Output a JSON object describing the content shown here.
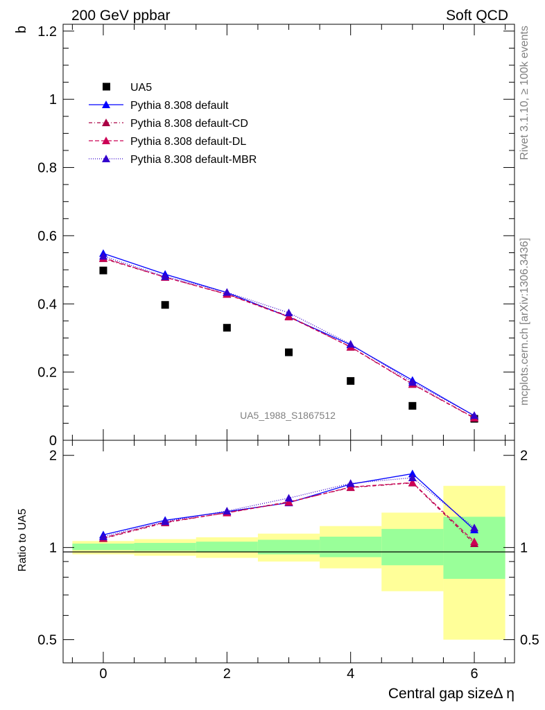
{
  "header": {
    "left": "200 GeV ppbar",
    "right": "Soft QCD"
  },
  "side_labels": {
    "rivet": "Rivet 3.1.10, ≥ 100k events",
    "mcplots": "mcplots.cern.ch [arXiv:1306.3436]"
  },
  "watermark": "UA5_1988_S1867512",
  "legend": [
    {
      "label": "UA5",
      "marker": "square",
      "color": "#000000",
      "dash": ""
    },
    {
      "label": "Pythia 8.308 default",
      "marker": "triangle",
      "color": "#0000ff",
      "dash": ""
    },
    {
      "label": "Pythia 8.308 default-CD",
      "marker": "triangle",
      "color": "#aa0044",
      "dash": "5,3,1,3"
    },
    {
      "label": "Pythia 8.308 default-DL",
      "marker": "triangle",
      "color": "#cc0055",
      "dash": "6,3"
    },
    {
      "label": "Pythia 8.308 default-MBR",
      "marker": "triangle",
      "color": "#3300cc",
      "dash": "1,2"
    }
  ],
  "chart_data": [
    {
      "type": "scatter",
      "panel": "main",
      "ylabel": "b",
      "xlim": [
        -0.65,
        6.65
      ],
      "ylim": [
        0,
        1.22
      ],
      "yticks": [
        0,
        0.2,
        0.4,
        0.6,
        0.8,
        1,
        1.2
      ],
      "ytick_labels": [
        "0",
        "0.2",
        "0.4",
        "0.6",
        "0.8",
        "1",
        "1.2"
      ],
      "x": [
        0,
        1,
        2,
        3,
        4,
        5,
        6
      ],
      "series": [
        {
          "name": "UA5",
          "values": [
            0.498,
            0.397,
            0.33,
            0.258,
            0.174,
            0.101,
            0.063
          ]
        },
        {
          "name": "Pythia 8.308 default",
          "values": [
            0.548,
            0.487,
            0.433,
            0.362,
            0.28,
            0.176,
            0.072
          ]
        },
        {
          "name": "Pythia 8.308 default-CD",
          "values": [
            0.533,
            0.478,
            0.429,
            0.364,
            0.273,
            0.164,
            0.065
          ]
        },
        {
          "name": "Pythia 8.308 default-DL",
          "values": [
            0.535,
            0.478,
            0.428,
            0.362,
            0.274,
            0.165,
            0.066
          ]
        },
        {
          "name": "Pythia 8.308 default-MBR",
          "values": [
            0.54,
            0.48,
            0.434,
            0.374,
            0.282,
            0.17,
            0.073
          ]
        }
      ]
    },
    {
      "type": "line",
      "panel": "ratio",
      "ylabel": "Ratio to UA5",
      "xlabel": "Central gap sizeΔ η",
      "xlim": [
        -0.65,
        6.65
      ],
      "ylim": [
        0.42,
        2.24
      ],
      "yticks": [
        0.5,
        1,
        2
      ],
      "ytick_labels": [
        "0.5",
        "1",
        "2"
      ],
      "xticks": [
        0,
        2,
        4,
        6
      ],
      "xtick_labels": [
        "0",
        "2",
        "4",
        "6"
      ],
      "x": [
        0,
        1,
        2,
        3,
        4,
        5,
        6
      ],
      "bands": [
        {
          "x0": -0.5,
          "x1": 0.5,
          "inner": [
            0.98,
            1.03
          ],
          "outer": [
            0.95,
            1.05
          ]
        },
        {
          "x0": 0.5,
          "x1": 1.5,
          "inner": [
            0.975,
            1.035
          ],
          "outer": [
            0.94,
            1.065
          ]
        },
        {
          "x0": 1.5,
          "x1": 2.5,
          "inner": [
            0.965,
            1.045
          ],
          "outer": [
            0.925,
            1.08
          ]
        },
        {
          "x0": 2.5,
          "x1": 3.5,
          "inner": [
            0.95,
            1.06
          ],
          "outer": [
            0.9,
            1.11
          ]
        },
        {
          "x0": 3.5,
          "x1": 4.5,
          "inner": [
            0.93,
            1.085
          ],
          "outer": [
            0.855,
            1.175
          ]
        },
        {
          "x0": 4.5,
          "x1": 5.5,
          "inner": [
            0.875,
            1.15
          ],
          "outer": [
            0.72,
            1.3
          ]
        },
        {
          "x0": 5.5,
          "x1": 6.5,
          "inner": [
            0.79,
            1.26
          ],
          "outer": [
            0.5,
            1.59
          ]
        }
      ],
      "series": [
        {
          "name": "Pythia 8.308 default",
          "values": [
            1.1,
            1.227,
            1.31,
            1.4,
            1.61,
            1.742,
            1.142
          ]
        },
        {
          "name": "Pythia 8.308 default-CD",
          "values": [
            1.07,
            1.205,
            1.3,
            1.41,
            1.57,
            1.625,
            1.03
          ]
        },
        {
          "name": "Pythia 8.308 default-DL",
          "values": [
            1.075,
            1.21,
            1.298,
            1.405,
            1.575,
            1.63,
            1.045
          ]
        },
        {
          "name": "Pythia 8.308 default-MBR",
          "values": [
            1.085,
            1.215,
            1.316,
            1.45,
            1.62,
            1.69,
            1.16
          ]
        }
      ]
    }
  ]
}
